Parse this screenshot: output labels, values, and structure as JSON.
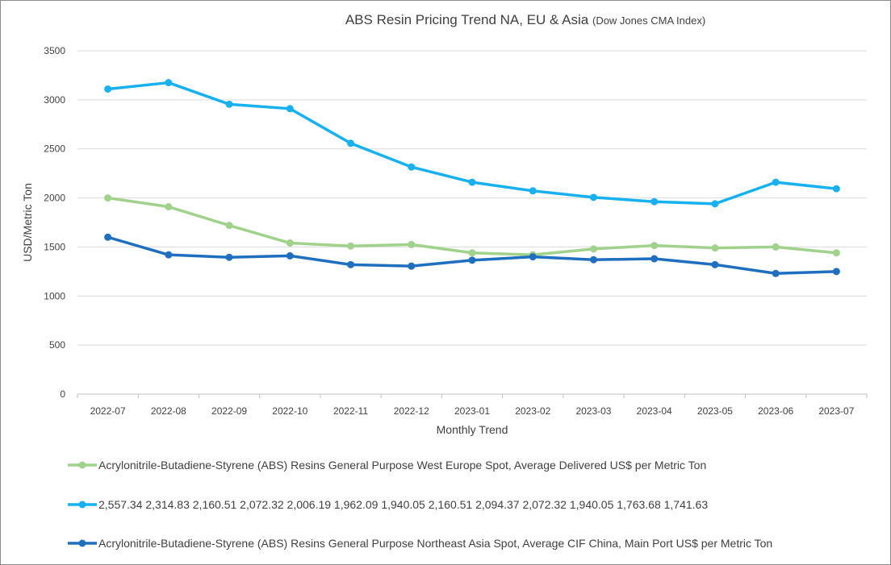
{
  "chart_data": {
    "type": "line",
    "title": "ABS Resin Pricing Trend NA, EU & Asia",
    "subtitle": "(Dow Jones CMA Index)",
    "xlabel": "Monthly Trend",
    "ylabel": "USD/Metric Ton",
    "ylim": [
      0,
      3500
    ],
    "yticks": [
      0,
      500,
      1000,
      1500,
      2000,
      2500,
      3000,
      3500
    ],
    "grid": true,
    "legend_position": "bottom",
    "categories": [
      "2022-07",
      "2022-08",
      "2022-09",
      "2022-10",
      "2022-11",
      "2022-12",
      "2023-01",
      "2023-02",
      "2023-03",
      "2023-04",
      "2023-05",
      "2023-06",
      "2023-07"
    ],
    "series": [
      {
        "name": "Acrylonitrile-Butadiene-Styrene (ABS) Resins General Purpose West Europe Spot, Average Delivered US$ per Metric Ton",
        "color": "#a0d28c",
        "values": [
          2000,
          1910,
          1720,
          1540,
          1510,
          1525,
          1440,
          1420,
          1480,
          1515,
          1490,
          1500,
          1440
        ]
      },
      {
        "name": "2,557.34 2,314.83 2,160.51 2,072.32 2,006.19 1,962.09 1,940.05 2,160.51 2,094.37 2,072.32 1,940.05 1,763.68 1,741.63",
        "color": "#18b0ee",
        "values": [
          3110,
          3175,
          2955,
          2910,
          2557,
          2315,
          2160,
          2072,
          2006,
          1962,
          1940,
          2160,
          2094
        ]
      },
      {
        "name": "Acrylonitrile-Butadiene-Styrene (ABS) Resins General Purpose Northeast Asia Spot, Average CIF China, Main Port US$ per Metric Ton",
        "color": "#1f6fbf",
        "values": [
          1600,
          1420,
          1395,
          1410,
          1320,
          1305,
          1365,
          1400,
          1370,
          1380,
          1320,
          1230,
          1250
        ]
      }
    ]
  }
}
